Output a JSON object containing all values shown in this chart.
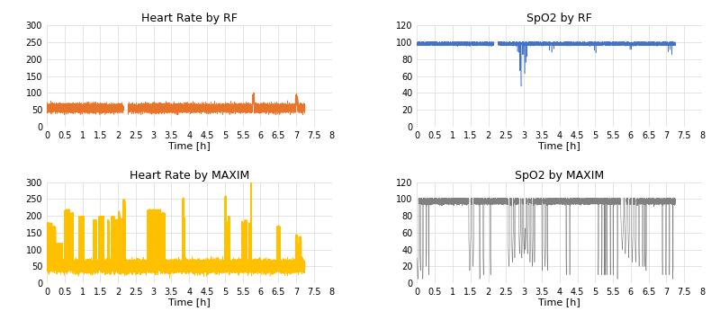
{
  "titles": [
    "Heart Rate by RF",
    "SpO2 by RF",
    "Heart Rate by MAXIM",
    "SpO2 by MAXIM"
  ],
  "xlabel": "Time [h]",
  "hr_rf_ylim": [
    0,
    300
  ],
  "hr_rf_yticks": [
    0,
    50,
    100,
    150,
    200,
    250,
    300
  ],
  "spo2_rf_ylim": [
    0,
    120
  ],
  "spo2_rf_yticks": [
    0,
    20,
    40,
    60,
    80,
    100,
    120
  ],
  "hr_maxim_ylim": [
    0,
    300
  ],
  "hr_maxim_yticks": [
    0,
    50,
    100,
    150,
    200,
    250,
    300
  ],
  "spo2_maxim_ylim": [
    0,
    120
  ],
  "spo2_maxim_yticks": [
    0,
    20,
    40,
    60,
    80,
    100,
    120
  ],
  "xlim": [
    0,
    8
  ],
  "xticks": [
    0,
    0.5,
    1,
    1.5,
    2,
    2.5,
    3,
    3.5,
    4,
    4.5,
    5,
    5.5,
    6,
    6.5,
    7,
    7.5,
    8
  ],
  "color_rf_hr": "#E8742A",
  "color_rf_spo2": "#4472C4",
  "color_maxim_hr": "#FFC000",
  "color_maxim_spo2": "#808080",
  "bg_color": "#FFFFFF",
  "grid_color": "#D9D9D9",
  "title_fontsize": 9,
  "axis_fontsize": 8,
  "tick_fontsize": 7,
  "linewidth": 0.4,
  "total_time_hours": 7.25
}
